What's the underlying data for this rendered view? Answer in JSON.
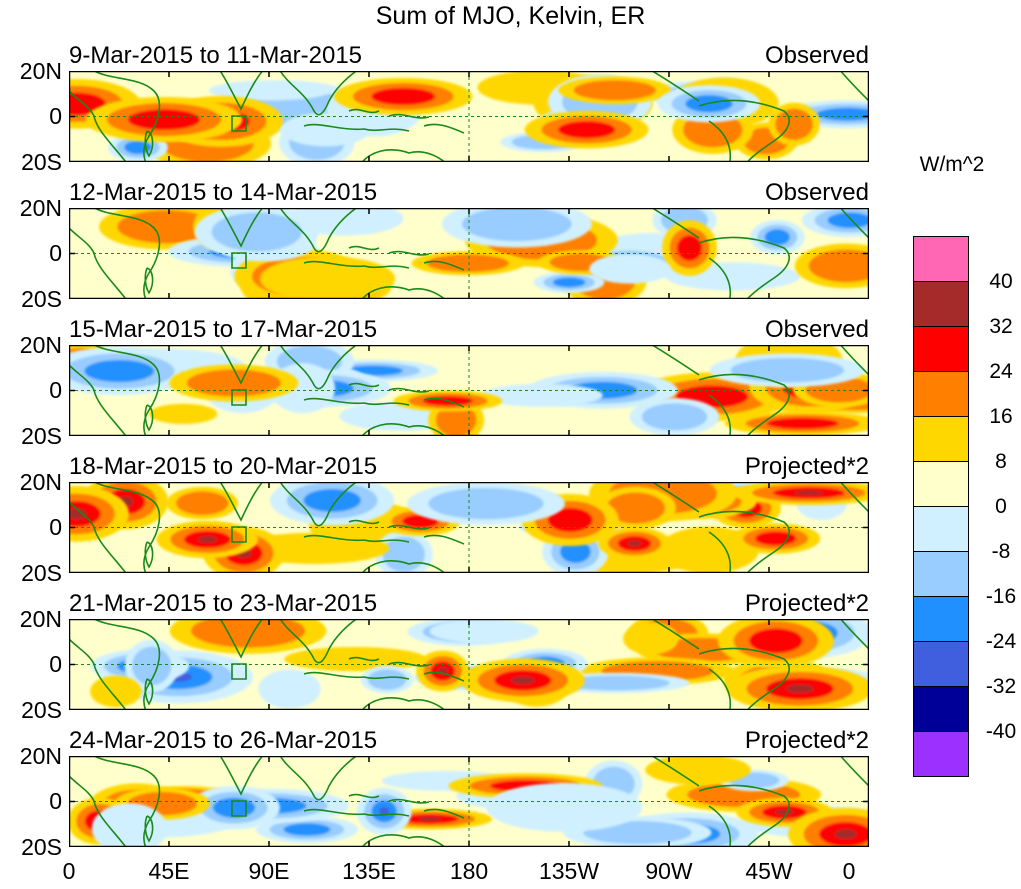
{
  "title": "Sum of MJO, Kelvin, ER",
  "units": "W/m^2",
  "lat_labels": [
    "20N",
    "0",
    "20S"
  ],
  "lon_labels": [
    "0",
    "45E",
    "90E",
    "135E",
    "180",
    "135W",
    "90W",
    "45W",
    "0"
  ],
  "panels": [
    {
      "date": "9-Mar-2015 to 11-Mar-2015",
      "label": "Observed"
    },
    {
      "date": "12-Mar-2015 to 14-Mar-2015",
      "label": "Observed"
    },
    {
      "date": "15-Mar-2015 to 17-Mar-2015",
      "label": "Observed"
    },
    {
      "date": "18-Mar-2015 to 20-Mar-2015",
      "label": "Projected*2"
    },
    {
      "date": "21-Mar-2015 to 23-Mar-2015",
      "label": "Projected*2"
    },
    {
      "date": "24-Mar-2015 to 26-Mar-2015",
      "label": "Projected*2"
    }
  ],
  "colorbar": {
    "ticks": [
      "40",
      "32",
      "24",
      "16",
      "8",
      "0",
      "-8",
      "-16",
      "-24",
      "-32",
      "-40"
    ],
    "colors": [
      "#ff66b3",
      "#a52a2a",
      "#ff0000",
      "#ff7f00",
      "#ffd700",
      "#ffffcc",
      "#d0f0ff",
      "#99ccff",
      "#2090ff",
      "#3f5fdf",
      "#000099",
      "#9b30ff"
    ]
  },
  "colors": {
    "coastline": "#1a8a1a",
    "equator_line": "#1a8a1a"
  }
}
